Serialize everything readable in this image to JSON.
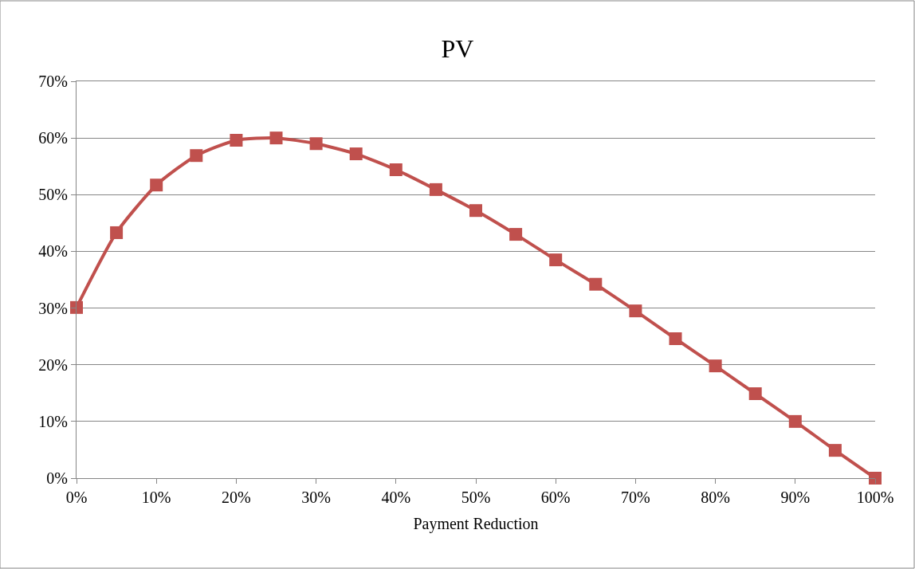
{
  "chart_data": {
    "type": "line",
    "title": "PV",
    "xlabel": "Payment Reduction",
    "x": [
      0,
      5,
      10,
      15,
      20,
      25,
      30,
      35,
      40,
      45,
      50,
      55,
      60,
      65,
      70,
      75,
      80,
      85,
      90,
      95,
      100
    ],
    "series": [
      {
        "color": "#c0504d",
        "values": [
          30.1,
          43.3,
          51.7,
          56.9,
          59.6,
          60.0,
          59.0,
          57.2,
          54.4,
          50.9,
          47.2,
          43.0,
          38.5,
          34.2,
          29.5,
          24.6,
          19.8,
          14.9,
          10.0,
          4.9,
          0
        ]
      }
    ],
    "xlim": [
      0,
      100
    ],
    "xticks": [
      {
        "value": 0,
        "label": "0%"
      },
      {
        "value": 10,
        "label": "10%"
      },
      {
        "value": 20,
        "label": "20%"
      },
      {
        "value": 30,
        "label": "30%"
      },
      {
        "value": 40,
        "label": "40%"
      },
      {
        "value": 50,
        "label": "50%"
      },
      {
        "value": 60,
        "label": "60%"
      },
      {
        "value": 70,
        "label": "70%"
      },
      {
        "value": 80,
        "label": "80%"
      },
      {
        "value": 90,
        "label": "90%"
      },
      {
        "value": 100,
        "label": "100%"
      }
    ],
    "ylim": [
      0,
      70
    ],
    "yticks": [
      {
        "value": 0,
        "label": "0%"
      },
      {
        "value": 10,
        "label": "10%"
      },
      {
        "value": 20,
        "label": "20%"
      },
      {
        "value": 30,
        "label": "30%"
      },
      {
        "value": 40,
        "label": "40%"
      },
      {
        "value": 50,
        "label": "50%"
      },
      {
        "value": 60,
        "label": "60%"
      },
      {
        "value": 70,
        "label": "70%"
      }
    ],
    "grid": "y",
    "marker": "square",
    "line_style": "solid"
  }
}
